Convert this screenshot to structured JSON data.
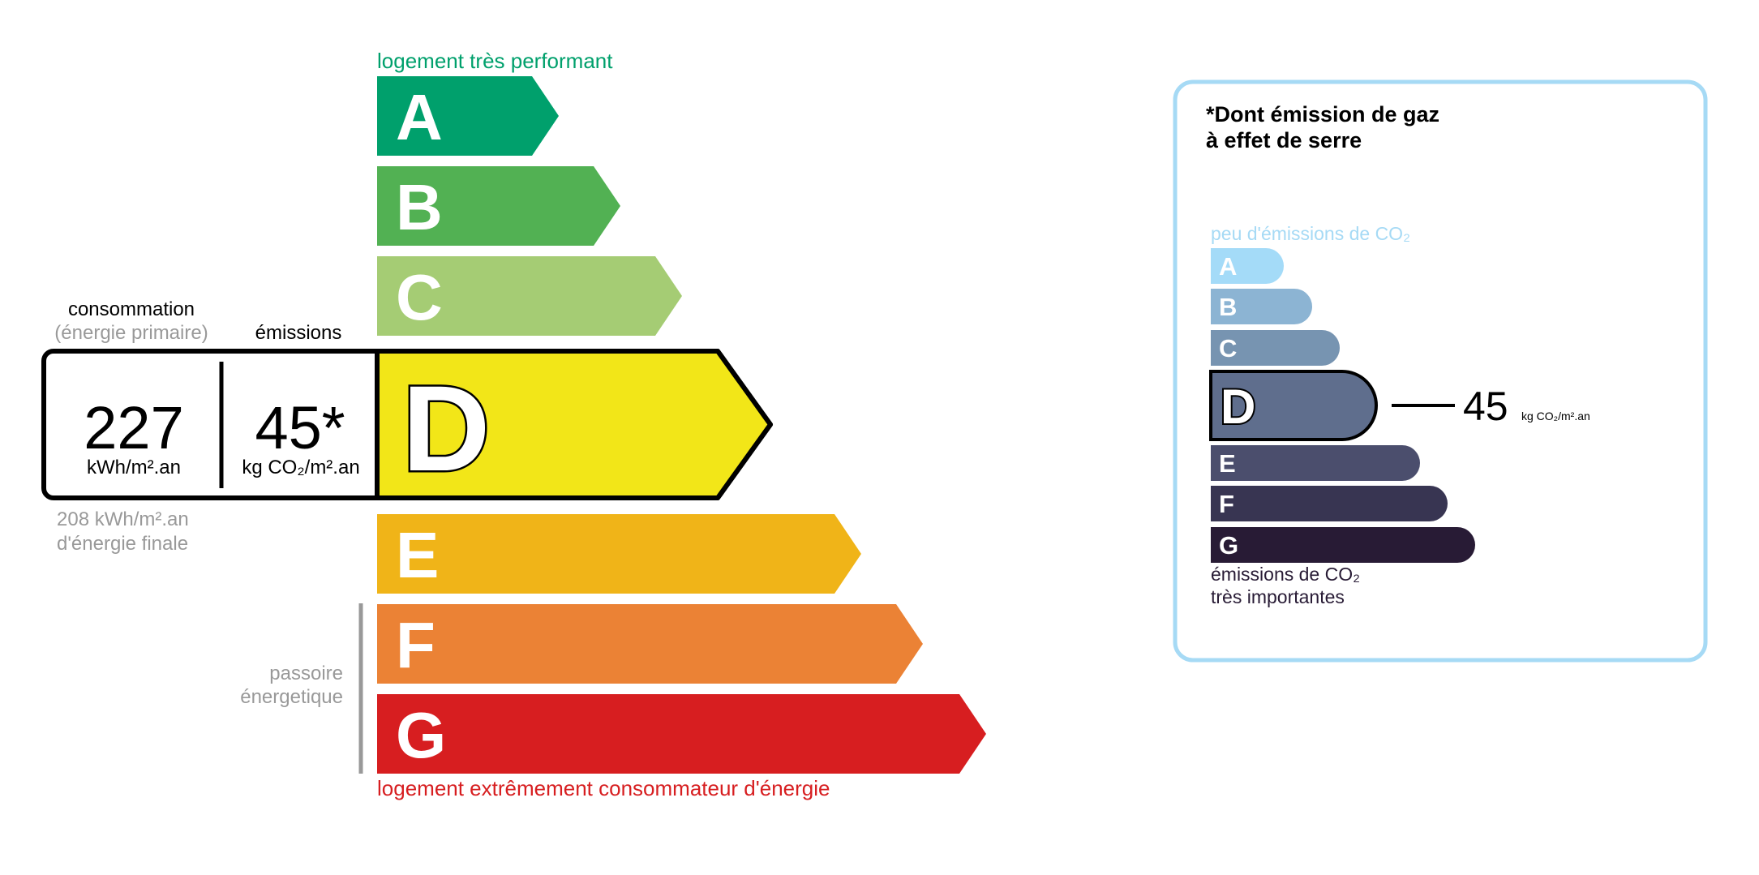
{
  "energy": {
    "top_label": "logement très performant",
    "bottom_label": "logement extrêmement consommateur d'énergie",
    "top_label_color": "#00a06c",
    "bottom_label_color": "#d71e20",
    "classes": [
      {
        "letter": "A",
        "color": "#00a06c"
      },
      {
        "letter": "B",
        "color": "#52b153"
      },
      {
        "letter": "C",
        "color": "#a5cc74"
      },
      {
        "letter": "D",
        "color": "#f2e618"
      },
      {
        "letter": "E",
        "color": "#f0b418"
      },
      {
        "letter": "F",
        "color": "#eb8235"
      },
      {
        "letter": "G",
        "color": "#d71e20"
      }
    ],
    "selected": "D",
    "consumption_label": "consommation",
    "consumption_sublabel": "(énergie primaire)",
    "emissions_label": "émissions",
    "consumption_value": "227",
    "consumption_unit": "kWh/m².an",
    "emissions_value": "45*",
    "emissions_unit": "kg CO₂/m².an",
    "final_energy_value": "208 kWh/m².an",
    "final_energy_label": "d'énergie finale",
    "passoire_line1": "passoire",
    "passoire_line2": "énergetique"
  },
  "ghg": {
    "title_line1": "*Dont émission de gaz",
    "title_line2": "à effet de serre",
    "top_label": "peu d'émissions de CO₂",
    "bottom_label_line1": "émissions de CO₂",
    "bottom_label_line2": "très importantes",
    "border_color": "#a6daf5",
    "classes": [
      {
        "letter": "A",
        "color": "#a4dbf8"
      },
      {
        "letter": "B",
        "color": "#8cb4d3"
      },
      {
        "letter": "C",
        "color": "#7794b1"
      },
      {
        "letter": "D",
        "color": "#5f6e8d"
      },
      {
        "letter": "E",
        "color": "#4b4e6d"
      },
      {
        "letter": "F",
        "color": "#383552"
      },
      {
        "letter": "G",
        "color": "#281b35"
      }
    ],
    "selected": "D",
    "value": "45",
    "unit": "kg CO₂/m².an"
  }
}
